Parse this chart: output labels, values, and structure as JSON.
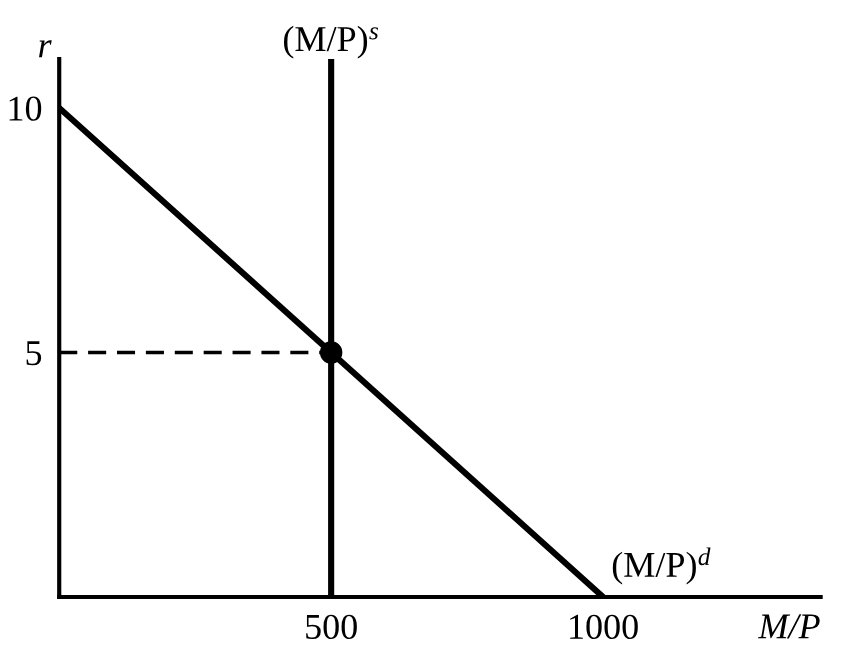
{
  "chart_data": {
    "type": "line",
    "xlabel": "M/P",
    "ylabel": "r",
    "xlim": [
      0,
      1400
    ],
    "ylim": [
      0,
      11
    ],
    "xticks": [
      500,
      1000
    ],
    "yticks": [
      5,
      10
    ],
    "grid": false,
    "legend": false,
    "series": [
      {
        "name": "(M/P)$^{d}$",
        "color": "#000000",
        "x": [
          0,
          1000
        ],
        "values": [
          10,
          0
        ]
      },
      {
        "name": "(M/P)$^{s}$",
        "color": "#000000",
        "x": [
          500,
          500
        ],
        "values": [
          0,
          11
        ]
      },
      {
        "color": "#000000",
        "x": [
          0,
          500
        ],
        "values": [
          5,
          5
        ],
        "line_style": "dashed"
      },
      {
        "type": "scatter",
        "color": "#000000",
        "x": [
          500
        ],
        "values": [
          5
        ],
        "marker": "circle"
      }
    ]
  }
}
